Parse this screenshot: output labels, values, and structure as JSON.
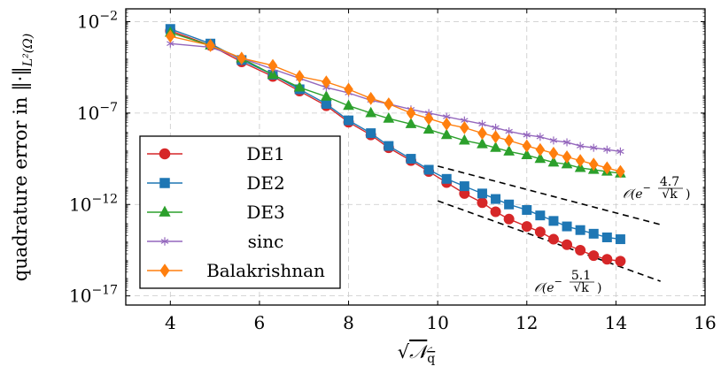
{
  "chart_data": {
    "type": "line",
    "xlabel": "√𝒩q",
    "ylabel": "quadrature error in ‖·‖L²(Ω)",
    "xlim": [
      3,
      16
    ],
    "ylim_log10": [
      -17.5,
      -1.3
    ],
    "y_scale": "log",
    "grid": true,
    "legend_position": "bottom-left",
    "x_ticks": [
      "4",
      "6",
      "8",
      "10",
      "12",
      "14",
      "16"
    ],
    "y_ticks": [
      {
        "base": "10",
        "exp": "−2",
        "log10": -2
      },
      {
        "base": "10",
        "exp": "−7",
        "log10": -7
      },
      {
        "base": "10",
        "exp": "−12",
        "log10": -12
      },
      {
        "base": "10",
        "exp": "−17",
        "log10": -17
      }
    ],
    "series": [
      {
        "name": "DE1",
        "color": "#d62728",
        "marker": "circle",
        "x": [
          4.0,
          4.9,
          5.6,
          6.3,
          6.9,
          7.5,
          8.0,
          8.5,
          8.9,
          9.4,
          9.8,
          10.2,
          10.6,
          11.0,
          11.3,
          11.6,
          12.0,
          12.3,
          12.6,
          12.9,
          13.2,
          13.5,
          13.8,
          14.1
        ],
        "y_log10": [
          -2.5,
          -3.3,
          -4.2,
          -5.0,
          -5.8,
          -6.6,
          -7.5,
          -8.2,
          -8.9,
          -9.6,
          -10.2,
          -10.8,
          -11.4,
          -11.9,
          -12.4,
          -12.8,
          -13.2,
          -13.5,
          -13.9,
          -14.2,
          -14.5,
          -14.8,
          -15.0,
          -15.1
        ]
      },
      {
        "name": "DE2",
        "color": "#1f77b4",
        "marker": "square",
        "x": [
          4.0,
          4.9,
          5.6,
          6.3,
          6.9,
          7.5,
          8.0,
          8.5,
          8.9,
          9.4,
          9.8,
          10.2,
          10.6,
          11.0,
          11.3,
          11.6,
          12.0,
          12.3,
          12.6,
          12.9,
          13.2,
          13.5,
          13.8,
          14.1
        ],
        "y_log10": [
          -2.4,
          -3.2,
          -4.1,
          -4.9,
          -5.7,
          -6.5,
          -7.4,
          -8.1,
          -8.8,
          -9.5,
          -10.1,
          -10.6,
          -11.0,
          -11.4,
          -11.7,
          -12.0,
          -12.3,
          -12.6,
          -12.9,
          -13.2,
          -13.4,
          -13.6,
          -13.8,
          -13.9
        ]
      },
      {
        "name": "DE3",
        "color": "#2ca02c",
        "marker": "triangle",
        "x": [
          4.0,
          4.9,
          5.6,
          6.3,
          6.9,
          7.5,
          8.0,
          8.5,
          8.9,
          9.4,
          9.8,
          10.2,
          10.6,
          11.0,
          11.3,
          11.6,
          12.0,
          12.3,
          12.6,
          12.9,
          13.2,
          13.5,
          13.8,
          14.1
        ],
        "y_log10": [
          -2.6,
          -3.3,
          -4.0,
          -4.9,
          -5.6,
          -6.1,
          -6.6,
          -7.0,
          -7.3,
          -7.6,
          -7.9,
          -8.2,
          -8.5,
          -8.7,
          -8.9,
          -9.1,
          -9.3,
          -9.5,
          -9.7,
          -9.8,
          -10.0,
          -10.1,
          -10.2,
          -10.3
        ]
      },
      {
        "name": "sinc",
        "color": "#9467bd",
        "marker": "star",
        "x": [
          4.0,
          4.9,
          5.6,
          6.3,
          6.9,
          7.5,
          8.0,
          8.5,
          8.9,
          9.4,
          9.8,
          10.2,
          10.6,
          11.0,
          11.3,
          11.6,
          12.0,
          12.3,
          12.6,
          12.9,
          13.2,
          13.5,
          13.8,
          14.1
        ],
        "y_log10": [
          -3.2,
          -3.4,
          -4.0,
          -4.6,
          -5.1,
          -5.6,
          -5.9,
          -6.3,
          -6.5,
          -6.8,
          -7.0,
          -7.2,
          -7.4,
          -7.6,
          -7.8,
          -8.0,
          -8.2,
          -8.3,
          -8.5,
          -8.6,
          -8.8,
          -8.9,
          -9.0,
          -9.1
        ]
      },
      {
        "name": "Balakrishnan",
        "color": "#ff7f0e",
        "marker": "diamond",
        "x": [
          4.0,
          4.9,
          5.6,
          6.3,
          6.9,
          7.5,
          8.0,
          8.5,
          8.9,
          9.4,
          9.8,
          10.2,
          10.6,
          11.0,
          11.3,
          11.6,
          12.0,
          12.3,
          12.6,
          12.9,
          13.2,
          13.5,
          13.8,
          14.1
        ],
        "y_log10": [
          -2.8,
          -3.3,
          -4.0,
          -4.4,
          -5.0,
          -5.3,
          -5.7,
          -6.2,
          -6.5,
          -7.0,
          -7.3,
          -7.6,
          -7.8,
          -8.1,
          -8.3,
          -8.5,
          -8.8,
          -9.0,
          -9.2,
          -9.4,
          -9.6,
          -9.8,
          -10.0,
          -10.2
        ]
      }
    ],
    "reference_lines": [
      {
        "label": "𝒪(e^(−4.7/√k))",
        "x": [
          10.0,
          15.0
        ],
        "y_log10": [
          -9.9,
          -13.1
        ]
      },
      {
        "label": "𝒪(e^(−5.1/√k))",
        "x": [
          10.0,
          15.0
        ],
        "y_log10": [
          -11.8,
          -16.2
        ]
      }
    ]
  }
}
